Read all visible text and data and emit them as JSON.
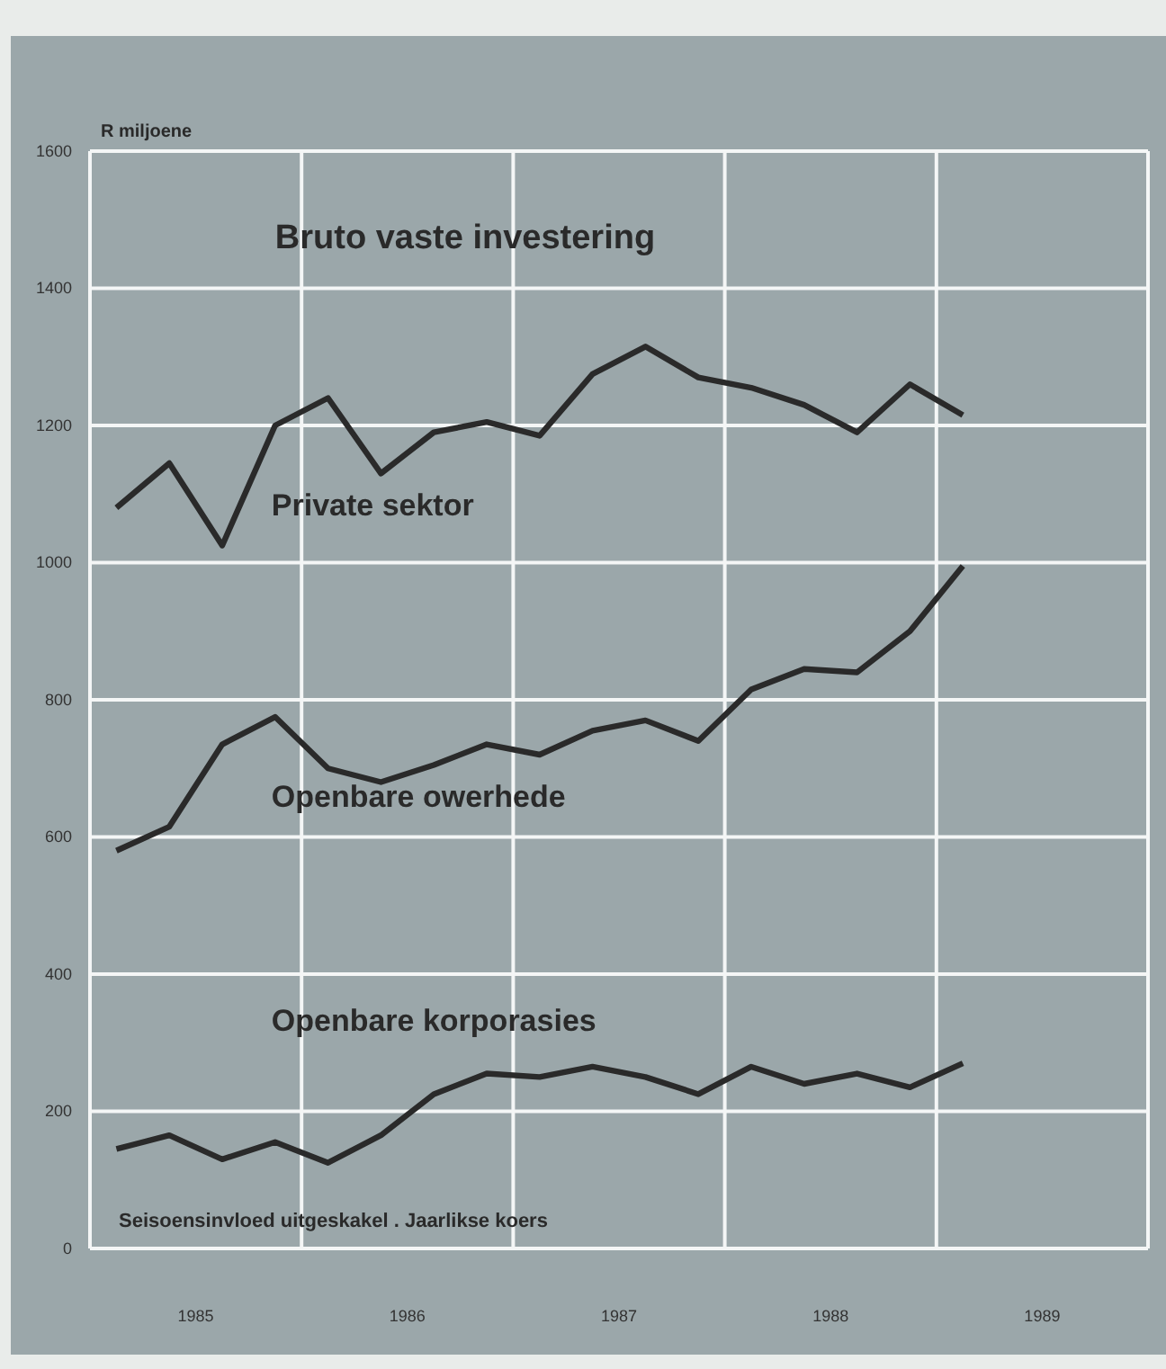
{
  "chart_data": {
    "type": "line",
    "title": "Bruto vaste investering",
    "ylabel": "R miljoene",
    "annotations": [
      "Seisoensinvloed uitgeskakel . Jaarlikse koers"
    ],
    "x": [
      1985.125,
      1985.375,
      1985.625,
      1985.875,
      1986.125,
      1986.375,
      1986.625,
      1986.875,
      1987.125,
      1987.375,
      1987.625,
      1987.875,
      1988.125,
      1988.375,
      1988.625,
      1988.875,
      1989.125
    ],
    "series": [
      {
        "name": "Private sektor",
        "color": "#2a2a2a",
        "values": [
          1080,
          1145,
          1025,
          1200,
          1240,
          1130,
          1190,
          1205,
          1185,
          1275,
          1315,
          1270,
          1255,
          1230,
          1190,
          1260,
          1215
        ]
      },
      {
        "name": "Openbare owerhede",
        "color": "#2a2a2a",
        "values": [
          580,
          615,
          735,
          775,
          700,
          680,
          705,
          735,
          720,
          755,
          770,
          740,
          815,
          845,
          840,
          900,
          995
        ]
      },
      {
        "name": "Openbare korporasies",
        "color": "#2a2a2a",
        "values": [
          145,
          165,
          130,
          155,
          125,
          165,
          225,
          255,
          250,
          265,
          250,
          225,
          265,
          240,
          255,
          235,
          270
        ]
      }
    ],
    "xlim": [
      1985,
      1990
    ],
    "xticks": [
      {
        "value": 1985,
        "label": null
      },
      {
        "value": 1985.5,
        "label": "1985"
      },
      {
        "value": 1986,
        "label": null
      },
      {
        "value": 1986.5,
        "label": "1986"
      },
      {
        "value": 1987,
        "label": null
      },
      {
        "value": 1987.5,
        "label": "1987"
      },
      {
        "value": 1988,
        "label": null
      },
      {
        "value": 1988.5,
        "label": "1988"
      },
      {
        "value": 1989,
        "label": null
      },
      {
        "value": 1989.5,
        "label": "1989"
      },
      {
        "value": 1990,
        "label": null
      }
    ],
    "ylim": [
      0,
      1600
    ],
    "yticks": [
      0,
      200,
      400,
      600,
      800,
      1000,
      1200,
      1400,
      1600
    ],
    "grid": true,
    "legend": false,
    "marker": "none",
    "line_style": "solid"
  }
}
